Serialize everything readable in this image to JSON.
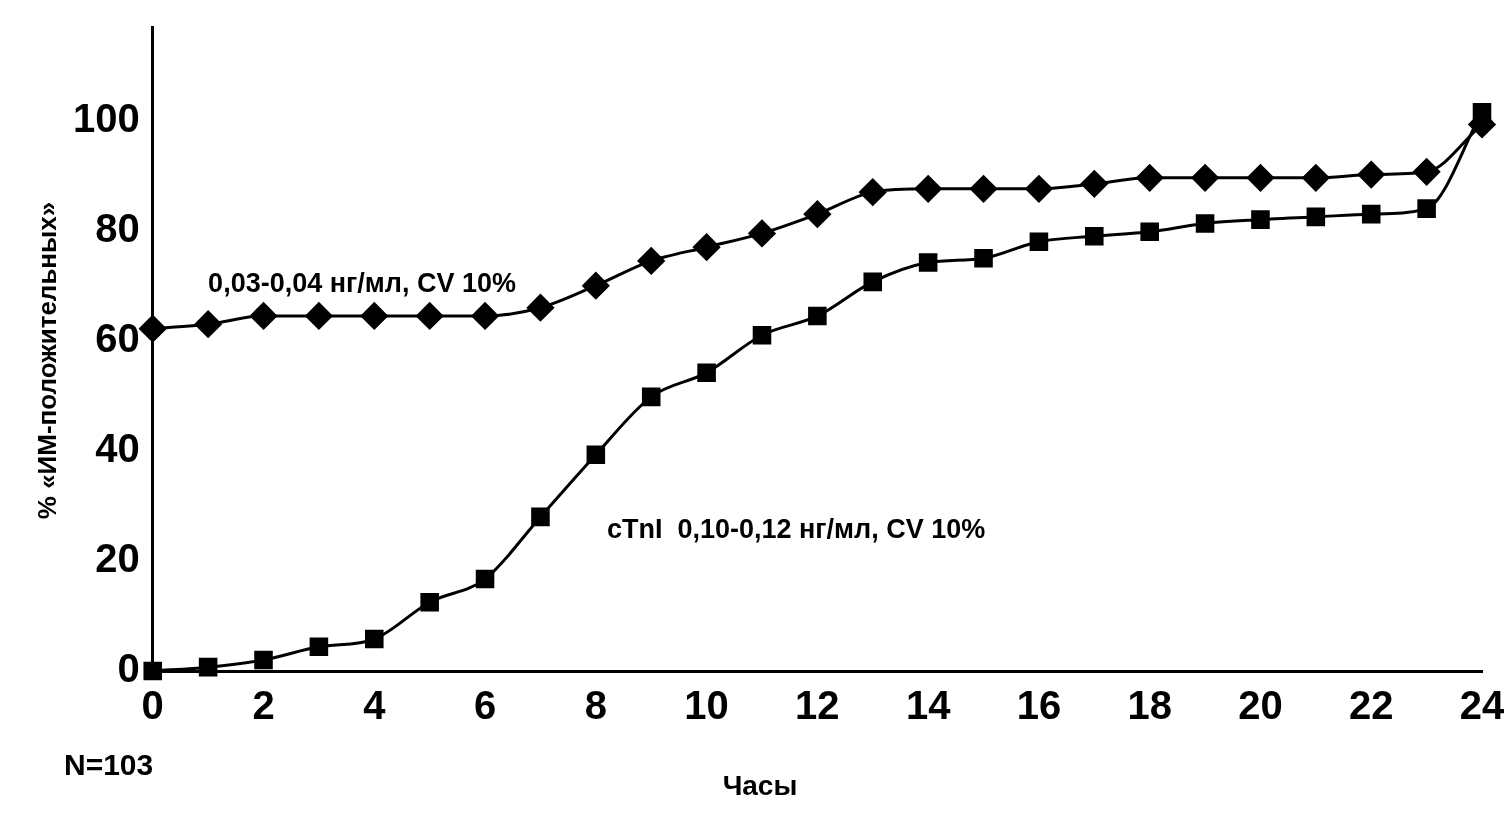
{
  "chart_data": {
    "type": "line",
    "xlabel": "Часы",
    "ylabel": "% «ИМ-положительных»",
    "annotations": [
      "N=103"
    ],
    "x": [
      0,
      1,
      2,
      3,
      4,
      5,
      6,
      7,
      8,
      9,
      10,
      11,
      12,
      13,
      14,
      15,
      16,
      17,
      18,
      19,
      20,
      21,
      22,
      23,
      24
    ],
    "xlim": [
      0,
      24
    ],
    "xticks": [
      0,
      2,
      4,
      6,
      8,
      10,
      12,
      14,
      16,
      18,
      20,
      22,
      24
    ],
    "ylim": [
      0,
      117
    ],
    "yticks": [
      0,
      20,
      40,
      60,
      80,
      100
    ],
    "grid": false,
    "legend": false,
    "line_style": "solid",
    "series": [
      {
        "name": "0,03-0,04 нг/мл, CV 10%",
        "color": "#000000",
        "marker": "diamond",
        "values": [
          62.2,
          63,
          64.5,
          64.5,
          64.5,
          64.5,
          64.5,
          66,
          70,
          74.5,
          77,
          79.5,
          83,
          87,
          87.6,
          87.6,
          87.6,
          88.5,
          89.6,
          89.6,
          89.6,
          89.6,
          90.2,
          90.7,
          99.3
        ]
      },
      {
        "name": "cTnI  0,10-0,12 нг/мл, CV 10%",
        "color": "#000000",
        "marker": "square",
        "values": [
          0,
          0.7,
          2,
          4.4,
          5.8,
          12.5,
          16.7,
          28,
          39.3,
          49.8,
          54.2,
          61,
          64.5,
          70.7,
          74.2,
          75,
          78,
          79,
          79.8,
          81.3,
          82,
          82.5,
          83,
          84,
          101.5
        ]
      }
    ]
  }
}
